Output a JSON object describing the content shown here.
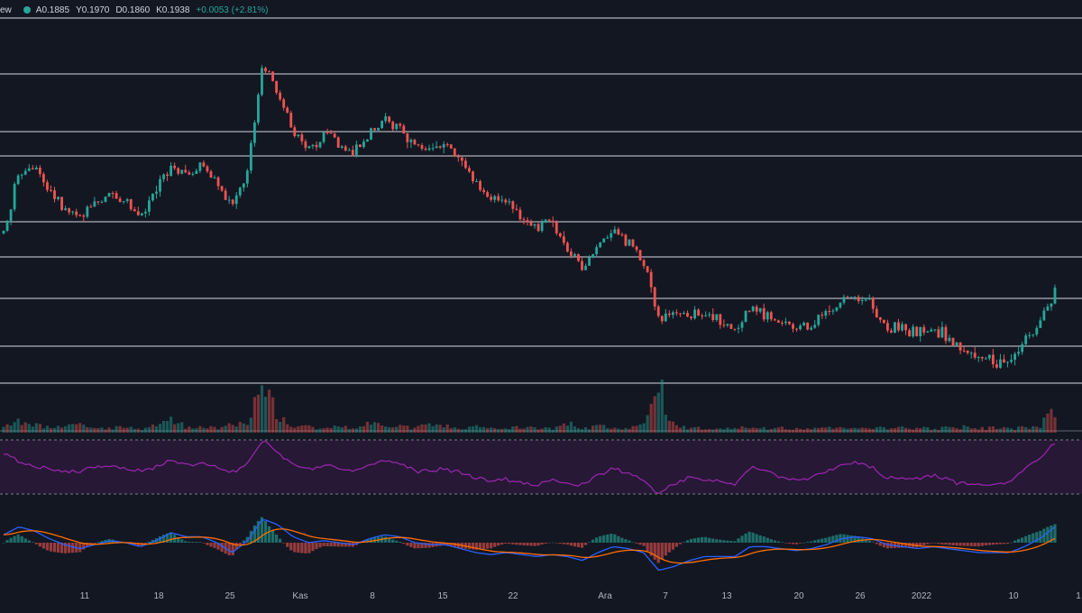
{
  "legend": {
    "source_fragment": "ew",
    "status_color": "#26a69a",
    "open": "A0.1885",
    "high": "Y0.1970",
    "low": "D0.1860",
    "close": "K0.1938",
    "change": "+0.0053 (+2.81%)"
  },
  "colors": {
    "background": "#131722",
    "up": "#26a69a",
    "down": "#ef5350",
    "level_line": "#c9ccd3",
    "rsi_line": "#9c27b0",
    "rsi_band": "#2a1838",
    "macd_line": "#2962ff",
    "signal_line": "#ff6d00"
  },
  "chart_data": {
    "type": "candlestick",
    "x_axis_ticks": [
      "11",
      "18",
      "25",
      "Kas",
      "8",
      "15",
      "22",
      "Ara",
      "7",
      "13",
      "20",
      "26",
      "2022",
      "10",
      "1"
    ],
    "horizontal_levels_count": 10,
    "price_series": [
      0.181,
      0.199,
      0.2,
      0.194,
      0.188,
      0.186,
      0.191,
      0.193,
      0.19,
      0.186,
      0.195,
      0.202,
      0.198,
      0.201,
      0.196,
      0.189,
      0.199,
      0.232,
      0.223,
      0.211,
      0.206,
      0.21,
      0.208,
      0.205,
      0.211,
      0.215,
      0.213,
      0.207,
      0.206,
      0.208,
      0.203,
      0.196,
      0.191,
      0.19,
      0.185,
      0.183,
      0.184,
      0.176,
      0.171,
      0.178,
      0.181,
      0.179,
      0.173,
      0.155,
      0.158,
      0.157,
      0.156,
      0.155,
      0.152,
      0.159,
      0.157,
      0.154,
      0.153,
      0.154,
      0.157,
      0.161,
      0.162,
      0.16,
      0.152,
      0.153,
      0.151,
      0.152,
      0.15,
      0.146,
      0.144,
      0.143,
      0.142,
      0.149,
      0.155,
      0.164
    ],
    "volume_series": [
      8,
      14,
      10,
      6,
      7,
      9,
      5,
      6,
      7,
      4,
      11,
      16,
      7,
      8,
      6,
      9,
      14,
      60,
      18,
      9,
      7,
      6,
      8,
      5,
      11,
      9,
      7,
      6,
      10,
      8,
      6,
      7,
      6,
      5,
      7,
      6,
      5,
      11,
      6,
      7,
      8,
      5,
      9,
      58,
      8,
      6,
      5,
      6,
      5,
      7,
      6,
      7,
      5,
      6,
      7,
      5,
      8,
      6,
      5,
      7,
      6,
      5,
      6,
      7,
      5,
      6,
      5,
      6,
      8,
      28
    ],
    "rsi_series": [
      62,
      55,
      50,
      48,
      47,
      46,
      50,
      52,
      49,
      46,
      51,
      56,
      52,
      54,
      50,
      45,
      54,
      75,
      62,
      52,
      48,
      51,
      49,
      47,
      52,
      56,
      53,
      47,
      46,
      48,
      44,
      40,
      38,
      38,
      36,
      34,
      38,
      35,
      33,
      44,
      48,
      44,
      38,
      25,
      34,
      40,
      38,
      37,
      33,
      50,
      47,
      40,
      38,
      40,
      46,
      52,
      54,
      50,
      38,
      40,
      38,
      42,
      38,
      35,
      33,
      34,
      36,
      48,
      58,
      72
    ],
    "macd_series": [
      0.4,
      0.8,
      0.6,
      0.2,
      -0.1,
      -0.3,
      -0.1,
      0.1,
      0.0,
      -0.2,
      0.1,
      0.5,
      0.3,
      0.3,
      0.0,
      -0.5,
      0.1,
      1.2,
      0.9,
      0.3,
      0.0,
      0.1,
      0.0,
      -0.1,
      0.2,
      0.4,
      0.3,
      0.0,
      -0.1,
      -0.1,
      -0.3,
      -0.5,
      -0.6,
      -0.5,
      -0.6,
      -0.7,
      -0.6,
      -0.7,
      -0.9,
      -0.5,
      -0.2,
      -0.3,
      -0.5,
      -1.4,
      -1.2,
      -0.9,
      -0.7,
      -0.7,
      -0.7,
      -0.2,
      -0.2,
      -0.3,
      -0.4,
      -0.3,
      -0.1,
      0.2,
      0.3,
      0.2,
      -0.1,
      -0.2,
      -0.3,
      -0.2,
      -0.3,
      -0.4,
      -0.5,
      -0.5,
      -0.5,
      -0.2,
      0.2,
      0.8
    ]
  }
}
